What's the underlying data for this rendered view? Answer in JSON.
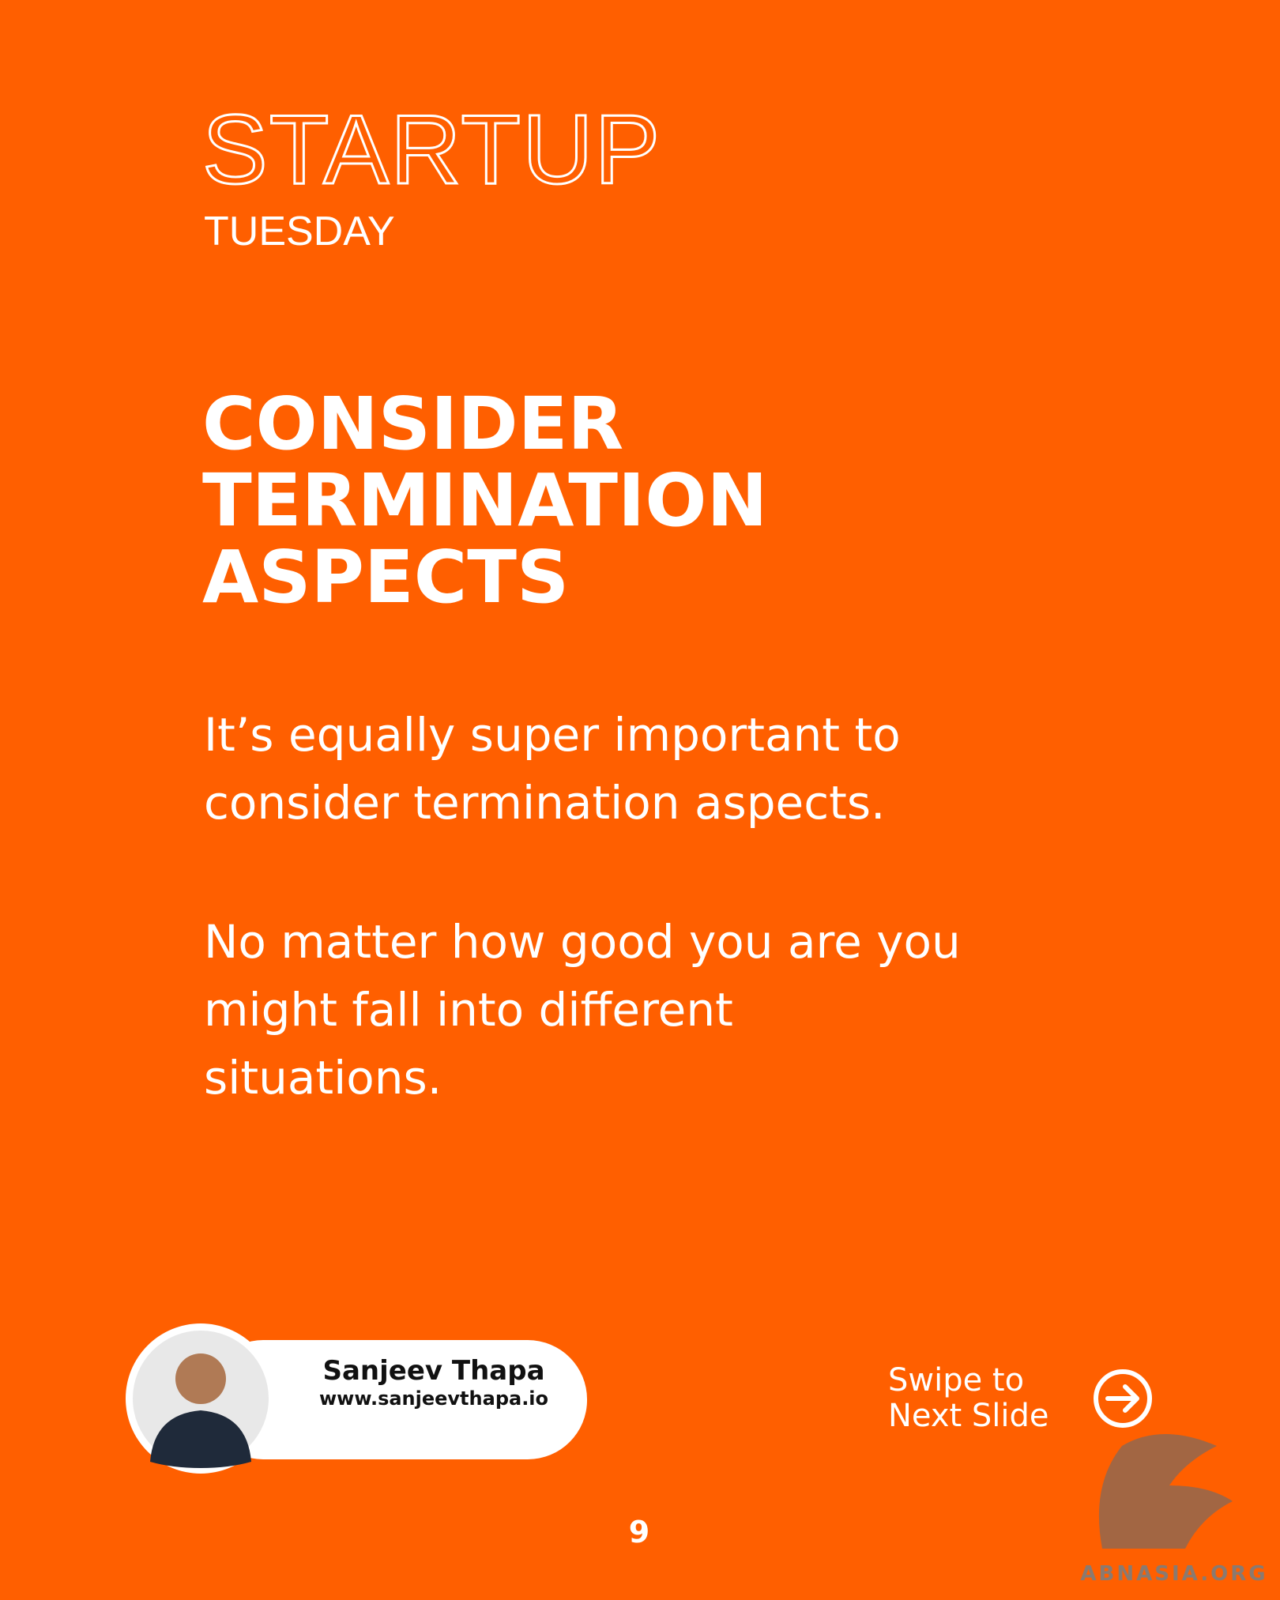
{
  "header": {
    "title": "STARTUP",
    "subtitle": "TUESDAY"
  },
  "heading": [
    "CONSIDER",
    "TERMINATION",
    "ASPECTS"
  ],
  "body": [
    [
      "It’s equally super important to",
      "consider termination aspects."
    ],
    [
      "No matter how good you are you",
      "might fall into different",
      "situations."
    ]
  ],
  "author": {
    "name": "Sanjeev Thapa",
    "website": "www.sanjeevthapa.io"
  },
  "swipe": [
    "Swipe to",
    "Next Slide"
  ],
  "page_number": "9",
  "watermark": "ABNASIA.ORG"
}
